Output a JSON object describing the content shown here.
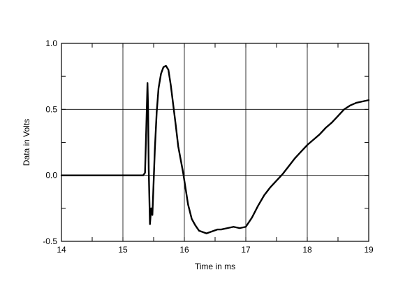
{
  "chart_data": {
    "type": "line",
    "title": "",
    "xlabel": "Time in ms",
    "ylabel": "Data in Volts",
    "xlim": [
      14,
      19
    ],
    "ylim": [
      -0.5,
      1.0
    ],
    "xticks": [
      14,
      15,
      16,
      17,
      18,
      19
    ],
    "xtick_labels": [
      "14",
      "15",
      "16",
      "17",
      "18",
      "19"
    ],
    "yticks": [
      -0.5,
      0.0,
      0.5,
      1.0
    ],
    "ytick_labels": [
      "-0.5",
      "0.0",
      "0.5",
      "1.0"
    ],
    "grid": true,
    "legend": "none",
    "series": [
      {
        "color": "#000000",
        "x": [
          14.0,
          15.1,
          15.33,
          15.36,
          15.38,
          15.4,
          15.41,
          15.42,
          15.44,
          15.46,
          15.48,
          15.5,
          15.52,
          15.55,
          15.58,
          15.62,
          15.66,
          15.7,
          15.74,
          15.78,
          15.82,
          15.86,
          15.9,
          15.94,
          15.98,
          16.02,
          16.06,
          16.12,
          16.18,
          16.24,
          16.3,
          16.36,
          16.42,
          16.48,
          16.54,
          16.6,
          16.7,
          16.8,
          16.9,
          17.0,
          17.1,
          17.2,
          17.3,
          17.4,
          17.5,
          17.6,
          17.7,
          17.8,
          17.9,
          18.0,
          18.1,
          18.2,
          18.3,
          18.4,
          18.5,
          18.6,
          18.7,
          18.8,
          18.9,
          19.0
        ],
        "y": [
          0.0,
          0.0,
          0.0,
          0.02,
          0.35,
          0.7,
          0.5,
          0.05,
          -0.37,
          -0.25,
          -0.3,
          -0.05,
          0.2,
          0.48,
          0.66,
          0.77,
          0.82,
          0.83,
          0.8,
          0.68,
          0.53,
          0.38,
          0.22,
          0.12,
          0.02,
          -0.1,
          -0.22,
          -0.33,
          -0.38,
          -0.42,
          -0.43,
          -0.44,
          -0.43,
          -0.42,
          -0.41,
          -0.41,
          -0.4,
          -0.39,
          -0.4,
          -0.39,
          -0.32,
          -0.23,
          -0.15,
          -0.09,
          -0.04,
          0.01,
          0.07,
          0.13,
          0.18,
          0.23,
          0.27,
          0.31,
          0.36,
          0.4,
          0.45,
          0.5,
          0.53,
          0.55,
          0.56,
          0.57
        ]
      }
    ]
  }
}
